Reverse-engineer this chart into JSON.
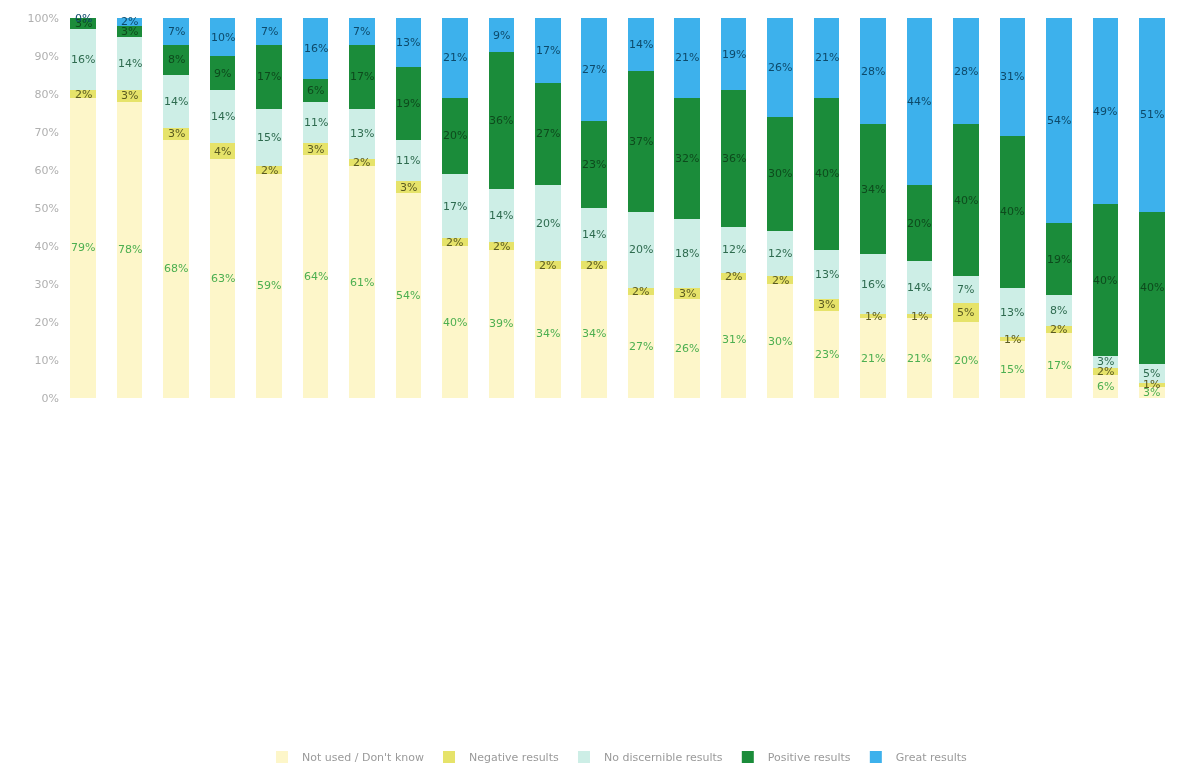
{
  "chart_data": {
    "type": "bar",
    "stacked": true,
    "categories": [
      null,
      null,
      null,
      null,
      null,
      null,
      null,
      null,
      null,
      null,
      null,
      null,
      null,
      null,
      null,
      null,
      null,
      null,
      null,
      null,
      null,
      null,
      null,
      null
    ],
    "ylim": [
      0,
      100
    ],
    "yticks": [
      {
        "value": 0,
        "label": "0%"
      },
      {
        "value": 10,
        "label": "10%"
      },
      {
        "value": 20,
        "label": "20%"
      },
      {
        "value": 30,
        "label": "30%"
      },
      {
        "value": 40,
        "label": "40%"
      },
      {
        "value": 50,
        "label": "50%"
      },
      {
        "value": 60,
        "label": "60%"
      },
      {
        "value": 70,
        "label": "70%"
      },
      {
        "value": 80,
        "label": "80%"
      },
      {
        "value": 90,
        "label": "90%"
      },
      {
        "value": 100,
        "label": "100%"
      }
    ],
    "legend": "bottom",
    "series": [
      {
        "name": "Not used / Don't know",
        "color": "#fdf6c9",
        "values": [
          79,
          78,
          68,
          63,
          59,
          64,
          61,
          54,
          40,
          39,
          34,
          34,
          27,
          26,
          31,
          30,
          23,
          21,
          21,
          20,
          15,
          17,
          6,
          3
        ],
        "value_labels": [
          "79%",
          "78%",
          "68%",
          "63%",
          "59%",
          "64%",
          "61%",
          "54%",
          "40%",
          "39%",
          "34%",
          "34%",
          "27%",
          "26%",
          "31%",
          "30%",
          "23%",
          "21%",
          "21%",
          "20%",
          "15%",
          "17%",
          "6%",
          "3%"
        ]
      },
      {
        "name": "Negative results",
        "color": "#e6e36a",
        "values": [
          2,
          3,
          3,
          4,
          2,
          3,
          2,
          3,
          2,
          2,
          2,
          2,
          2,
          3,
          2,
          2,
          3,
          1,
          1,
          5,
          1,
          2,
          2,
          1
        ],
        "value_labels": [
          "2%",
          "3%",
          "3%",
          "4%",
          "2%",
          "3%",
          "2%",
          "3%",
          "2%",
          "2%",
          "2%",
          "2%",
          "2%",
          "3%",
          "2%",
          "2%",
          "3%",
          "1%",
          "1%",
          "5%",
          "1%",
          "2%",
          "2%",
          "1%"
        ]
      },
      {
        "name": "No discernible results",
        "color": "#cdeee6",
        "values": [
          16,
          14,
          14,
          14,
          15,
          11,
          13,
          11,
          17,
          14,
          20,
          14,
          20,
          18,
          12,
          12,
          13,
          16,
          14,
          7,
          13,
          8,
          3,
          5
        ],
        "value_labels": [
          "16%",
          "14%",
          "14%",
          "14%",
          "15%",
          "11%",
          "13%",
          "11%",
          "17%",
          "14%",
          "20%",
          "14%",
          "20%",
          "18%",
          "12%",
          "12%",
          "13%",
          "16%",
          "14%",
          "7%",
          "13%",
          "8%",
          "3%",
          "5%"
        ]
      },
      {
        "name": "Positive results",
        "color": "#1b8c3a",
        "values": [
          3,
          3,
          8,
          9,
          17,
          6,
          17,
          19,
          20,
          36,
          27,
          23,
          37,
          32,
          36,
          30,
          40,
          34,
          20,
          40,
          40,
          19,
          40,
          40
        ],
        "value_labels": [
          "3%",
          "3%",
          "8%",
          "9%",
          "17%",
          "6%",
          "17%",
          "19%",
          "20%",
          "36%",
          "27%",
          "23%",
          "37%",
          "32%",
          "36%",
          "30%",
          "40%",
          "34%",
          "20%",
          "40%",
          "40%",
          "19%",
          "40%",
          "40%"
        ]
      },
      {
        "name": "Great results",
        "color": "#3db1ec",
        "values": [
          0,
          2,
          7,
          10,
          7,
          16,
          7,
          13,
          21,
          9,
          17,
          27,
          14,
          21,
          19,
          26,
          21,
          28,
          44,
          28,
          31,
          54,
          49,
          51
        ],
        "value_labels": [
          "0%",
          "2%",
          "7%",
          "10%",
          "7%",
          "16%",
          "7%",
          "13%",
          "21%",
          "9%",
          "17%",
          "27%",
          "14%",
          "21%",
          "19%",
          "26%",
          "21%",
          "28%",
          "44%",
          "28%",
          "31%",
          "54%",
          "49%",
          "51%"
        ]
      }
    ]
  }
}
